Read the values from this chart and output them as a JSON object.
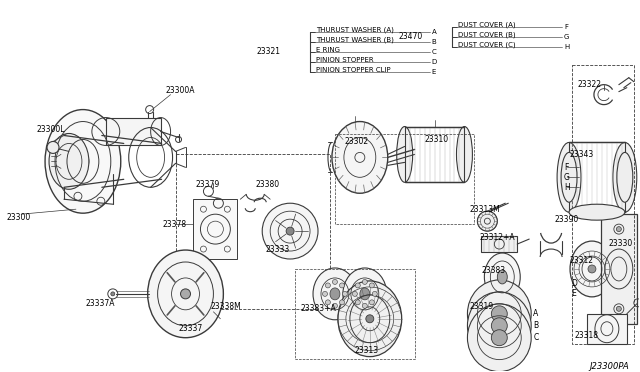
{
  "bg_color": "#ffffff",
  "line_color": "#3a3a3a",
  "text_color": "#000000",
  "diagram_code": "J23300PA",
  "fig_width": 6.4,
  "fig_height": 3.72,
  "dpi": 100,
  "legend_left_ref": "23321",
  "legend_left_items": [
    {
      "label": "THURUST WASHER (A)",
      "letter": "A"
    },
    {
      "label": "THURUST WASHER (B)",
      "letter": "B"
    },
    {
      "label": "E RING",
      "letter": "C"
    },
    {
      "label": "PINION STOPPER",
      "letter": "D"
    },
    {
      "label": "PINION STOPPER CLIP",
      "letter": "E"
    }
  ],
  "legend_right_ref": "23470",
  "legend_right_items": [
    {
      "label": "DUST COVER (A)",
      "letter": "F"
    },
    {
      "label": "DUST COVER (B)",
      "letter": "G"
    },
    {
      "label": "DUST COVER (C)",
      "letter": "H"
    }
  ]
}
